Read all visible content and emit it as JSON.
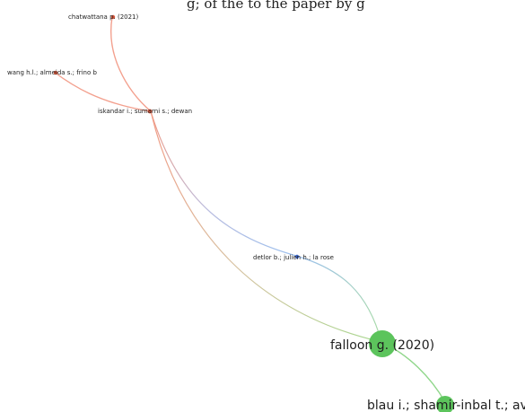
{
  "top_caption": "g; of the to the paper by g",
  "nodes": [
    {
      "id": "chatwattana",
      "label": "chatwattana p. (2021)",
      "color": "#d9573b",
      "weight": 1
    },
    {
      "id": "wang",
      "label": "wang h.l.; almeida s.; frino b",
      "color": "#d9573b",
      "weight": 1
    },
    {
      "id": "iskandar",
      "label": "iskandar i.; sumarni s.; dewan",
      "color": "#d9573b",
      "weight": 1
    },
    {
      "id": "detlor",
      "label": "detlor b.; julien h.; la rose",
      "color": "#3a63c7",
      "weight": 1
    },
    {
      "id": "falloon",
      "label": "falloon g. (2020)",
      "color": "#5cc45c",
      "weight": 4
    },
    {
      "id": "blau",
      "label": "blau i.; shamir-inbal t.; avdi",
      "color": "#5cc45c",
      "weight": 2
    }
  ],
  "links": [
    {
      "from": "chatwattana",
      "to": "iskandar"
    },
    {
      "from": "wang",
      "to": "iskandar"
    },
    {
      "from": "iskandar",
      "to": "detlor"
    },
    {
      "from": "iskandar",
      "to": "falloon"
    },
    {
      "from": "detlor",
      "to": "falloon"
    },
    {
      "from": "falloon",
      "to": "blau"
    }
  ]
}
